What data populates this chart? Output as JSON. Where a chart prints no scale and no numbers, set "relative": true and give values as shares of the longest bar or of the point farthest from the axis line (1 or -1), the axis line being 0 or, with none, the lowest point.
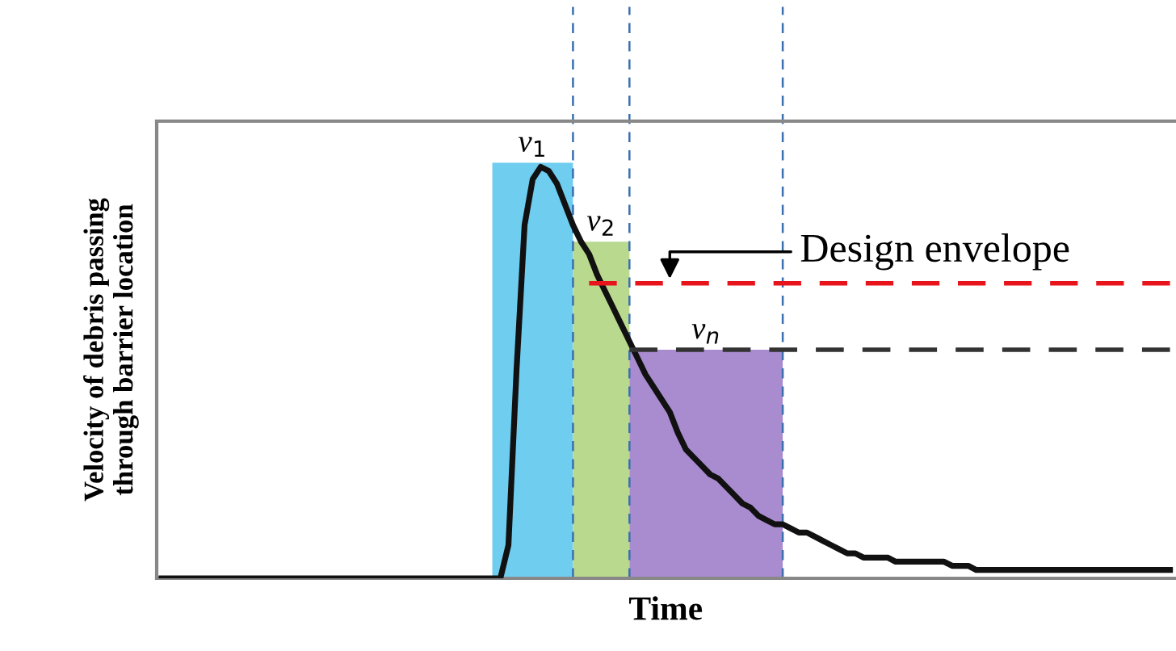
{
  "chart_data": {
    "type": "line",
    "relative": true,
    "xlabel": "Time",
    "ylabel": "Velocity of debris passing\nthrough barrier location",
    "legend": false,
    "categories": [
      null,
      null,
      null,
      null,
      null,
      null,
      null,
      null,
      null,
      null,
      null,
      null,
      null,
      null,
      null,
      null,
      null,
      null,
      null,
      null,
      null,
      null,
      null,
      null,
      null,
      null,
      null,
      null,
      null,
      null,
      null,
      null,
      null,
      null,
      null,
      null,
      null,
      null,
      null,
      null,
      null,
      null,
      null,
      null,
      null,
      null,
      null,
      null,
      null,
      null,
      null,
      null,
      null,
      null,
      null,
      null,
      null,
      null,
      null,
      null,
      null,
      null,
      null,
      null,
      null,
      null,
      null,
      null,
      null,
      null,
      null,
      null,
      null,
      null,
      null,
      null,
      null,
      null,
      null,
      null,
      null,
      null,
      null,
      null,
      null,
      null,
      null,
      null,
      null,
      null,
      null,
      null,
      null,
      null,
      null,
      null,
      null,
      null,
      null,
      null,
      null,
      null,
      null,
      null,
      null,
      null,
      null,
      null,
      null,
      null,
      null,
      null,
      null,
      null,
      null,
      null,
      null,
      null,
      null,
      null,
      null,
      null,
      null,
      null,
      null,
      null
    ],
    "series": [
      {
        "type": "area",
        "color": "#6fcdf0",
        "values": [
          null,
          null,
          null,
          null,
          null,
          null,
          null,
          null,
          null,
          null,
          null,
          null,
          null,
          null,
          null,
          null,
          null,
          null,
          null,
          null,
          null,
          null,
          null,
          null,
          null,
          null,
          null,
          null,
          null,
          null,
          null,
          null,
          null,
          null,
          null,
          null,
          null,
          null,
          null,
          null,
          null,
          1,
          1,
          1,
          1,
          1,
          1,
          1,
          1,
          1,
          1,
          1,
          null,
          null,
          null,
          null,
          null,
          null,
          null,
          null,
          null,
          null,
          null,
          null,
          null,
          null,
          null,
          null,
          null,
          null,
          null,
          null,
          null,
          null,
          null,
          null,
          null,
          null,
          null,
          null,
          null,
          null,
          null,
          null,
          null,
          null,
          null,
          null,
          null,
          null,
          null,
          null,
          null,
          null,
          null,
          null,
          null,
          null,
          null,
          null,
          null,
          null,
          null,
          null,
          null,
          null,
          null,
          null,
          null,
          null,
          null,
          null,
          null,
          null,
          null,
          null,
          null,
          null,
          null,
          null,
          null,
          null,
          null,
          null,
          null,
          null
        ]
      },
      {
        "type": "area",
        "color": "#b9d98e",
        "values": [
          null,
          null,
          null,
          null,
          null,
          null,
          null,
          null,
          null,
          null,
          null,
          null,
          null,
          null,
          null,
          null,
          null,
          null,
          null,
          null,
          null,
          null,
          null,
          null,
          null,
          null,
          null,
          null,
          null,
          null,
          null,
          null,
          null,
          null,
          null,
          null,
          null,
          null,
          null,
          null,
          null,
          null,
          null,
          null,
          null,
          null,
          null,
          null,
          null,
          null,
          null,
          0.81,
          0.81,
          0.81,
          0.81,
          0.81,
          0.81,
          0.81,
          0.81,
          null,
          null,
          null,
          null,
          null,
          null,
          null,
          null,
          null,
          null,
          null,
          null,
          null,
          null,
          null,
          null,
          null,
          null,
          null,
          null,
          null,
          null,
          null,
          null,
          null,
          null,
          null,
          null,
          null,
          null,
          null,
          null,
          null,
          null,
          null,
          null,
          null,
          null,
          null,
          null,
          null,
          null,
          null,
          null,
          null,
          null,
          null,
          null,
          null,
          null,
          null,
          null,
          null,
          null,
          null,
          null,
          null,
          null,
          null,
          null,
          null,
          null,
          null,
          null,
          null,
          null,
          null
        ]
      },
      {
        "type": "area",
        "color": "#a98bcf",
        "values": [
          null,
          null,
          null,
          null,
          null,
          null,
          null,
          null,
          null,
          null,
          null,
          null,
          null,
          null,
          null,
          null,
          null,
          null,
          null,
          null,
          null,
          null,
          null,
          null,
          null,
          null,
          null,
          null,
          null,
          null,
          null,
          null,
          null,
          null,
          null,
          null,
          null,
          null,
          null,
          null,
          null,
          null,
          null,
          null,
          null,
          null,
          null,
          null,
          null,
          null,
          null,
          null,
          null,
          null,
          null,
          null,
          null,
          null,
          0.55,
          0.55,
          0.55,
          0.55,
          0.55,
          0.55,
          0.55,
          0.55,
          0.55,
          0.55,
          0.55,
          0.55,
          0.55,
          0.55,
          0.55,
          0.55,
          0.55,
          0.55,
          0.55,
          0.55,
          null,
          null,
          null,
          null,
          null,
          null,
          null,
          null,
          null,
          null,
          null,
          null,
          null,
          null,
          null,
          null,
          null,
          null,
          null,
          null,
          null,
          null,
          null,
          null,
          null,
          null,
          null,
          null,
          null,
          null,
          null,
          null,
          null,
          null,
          null,
          null,
          null,
          null,
          null,
          null,
          null,
          null,
          null,
          null,
          null,
          null,
          null,
          null
        ]
      },
      {
        "color": "#111111",
        "values": [
          0,
          0,
          0,
          0,
          0,
          0,
          0,
          0,
          0,
          0,
          0,
          0,
          0,
          0,
          0,
          0,
          0,
          0,
          0,
          0,
          0,
          0,
          0,
          0,
          0,
          0,
          0,
          0,
          0,
          0,
          0,
          0,
          0,
          0,
          0,
          0,
          0,
          0,
          0,
          0,
          0,
          0,
          0,
          0.08,
          0.5,
          0.85,
          0.96,
          0.99,
          0.98,
          0.95,
          0.9,
          0.85,
          0.81,
          0.78,
          0.73,
          0.69,
          0.65,
          0.61,
          0.57,
          0.53,
          0.49,
          0.46,
          0.43,
          0.4,
          0.35,
          0.31,
          0.29,
          0.27,
          0.25,
          0.24,
          0.22,
          0.2,
          0.18,
          0.17,
          0.15,
          0.14,
          0.13,
          0.13,
          0.12,
          0.11,
          0.11,
          0.1,
          0.09,
          0.08,
          0.07,
          0.06,
          0.06,
          0.05,
          0.05,
          0.05,
          0.05,
          0.04,
          0.04,
          0.04,
          0.04,
          0.04,
          0.04,
          0.04,
          0.03,
          0.03,
          0.03,
          0.02,
          0.02,
          0.02,
          0.02,
          0.02,
          0.02,
          0.02,
          0.02,
          0.02,
          0.02,
          0.02,
          0.02,
          0.02,
          0.02,
          0.02,
          0.02,
          0.02,
          0.02,
          0.02,
          0.02,
          0.02,
          0.02,
          0.02,
          0.02,
          0.02
        ]
      },
      {
        "color": "#e8141c",
        "line_style": "dashed",
        "values": [
          null,
          null,
          null,
          null,
          null,
          null,
          null,
          null,
          null,
          null,
          null,
          null,
          null,
          null,
          null,
          null,
          null,
          null,
          null,
          null,
          null,
          null,
          null,
          null,
          null,
          null,
          null,
          null,
          null,
          null,
          null,
          null,
          null,
          null,
          null,
          null,
          null,
          null,
          null,
          null,
          null,
          null,
          null,
          null,
          null,
          null,
          null,
          null,
          null,
          null,
          null,
          null,
          null,
          0.71,
          0.71,
          0.71,
          0.71,
          0.71,
          0.71,
          0.71,
          0.71,
          0.71,
          0.71,
          0.71,
          0.71,
          0.71,
          0.71,
          0.71,
          0.71,
          0.71,
          0.71,
          0.71,
          0.71,
          0.71,
          0.71,
          0.71,
          0.71,
          0.71,
          0.71,
          0.71,
          0.71,
          0.71,
          0.71,
          0.71,
          0.71,
          0.71,
          0.71,
          0.71,
          0.71,
          0.71,
          0.71,
          0.71,
          0.71,
          0.71,
          0.71,
          0.71,
          0.71,
          0.71,
          0.71,
          0.71,
          0.71,
          0.71,
          0.71,
          0.71,
          0.71,
          0.71,
          0.71,
          0.71,
          0.71,
          0.71,
          0.71,
          0.71,
          0.71,
          0.71,
          0.71,
          0.71,
          0.71,
          0.71,
          0.71,
          0.71,
          0.71,
          0.71,
          0.71,
          0.71,
          0.71,
          0.71
        ]
      },
      {
        "color": "#333333",
        "line_style": "dashed",
        "values": [
          null,
          null,
          null,
          null,
          null,
          null,
          null,
          null,
          null,
          null,
          null,
          null,
          null,
          null,
          null,
          null,
          null,
          null,
          null,
          null,
          null,
          null,
          null,
          null,
          null,
          null,
          null,
          null,
          null,
          null,
          null,
          null,
          null,
          null,
          null,
          null,
          null,
          null,
          null,
          null,
          null,
          null,
          null,
          null,
          null,
          null,
          null,
          null,
          null,
          null,
          null,
          null,
          null,
          null,
          null,
          null,
          null,
          null,
          0.55,
          0.55,
          0.55,
          0.55,
          0.55,
          0.55,
          0.55,
          0.55,
          0.55,
          0.55,
          0.55,
          0.55,
          0.55,
          0.55,
          0.55,
          0.55,
          0.55,
          0.55,
          0.55,
          0.55,
          0.55,
          0.55,
          0.55,
          0.55,
          0.55,
          0.55,
          0.55,
          0.55,
          0.55,
          0.55,
          0.55,
          0.55,
          0.55,
          0.55,
          0.55,
          0.55,
          0.55,
          0.55,
          0.55,
          0.55,
          0.55,
          0.55,
          0.55,
          0.55,
          0.55,
          0.55,
          0.55,
          0.55,
          0.55,
          0.55,
          0.55,
          0.55,
          0.55,
          0.55,
          0.55,
          0.55,
          0.55,
          0.55,
          0.55,
          0.55,
          0.55,
          0.55,
          0.55,
          0.55,
          0.55,
          0.55,
          0.55,
          0.55
        ]
      }
    ],
    "annotations": [
      "v$_{1}$",
      "v$_{2}$",
      "v$_{n}$",
      "Design envelope"
    ]
  }
}
